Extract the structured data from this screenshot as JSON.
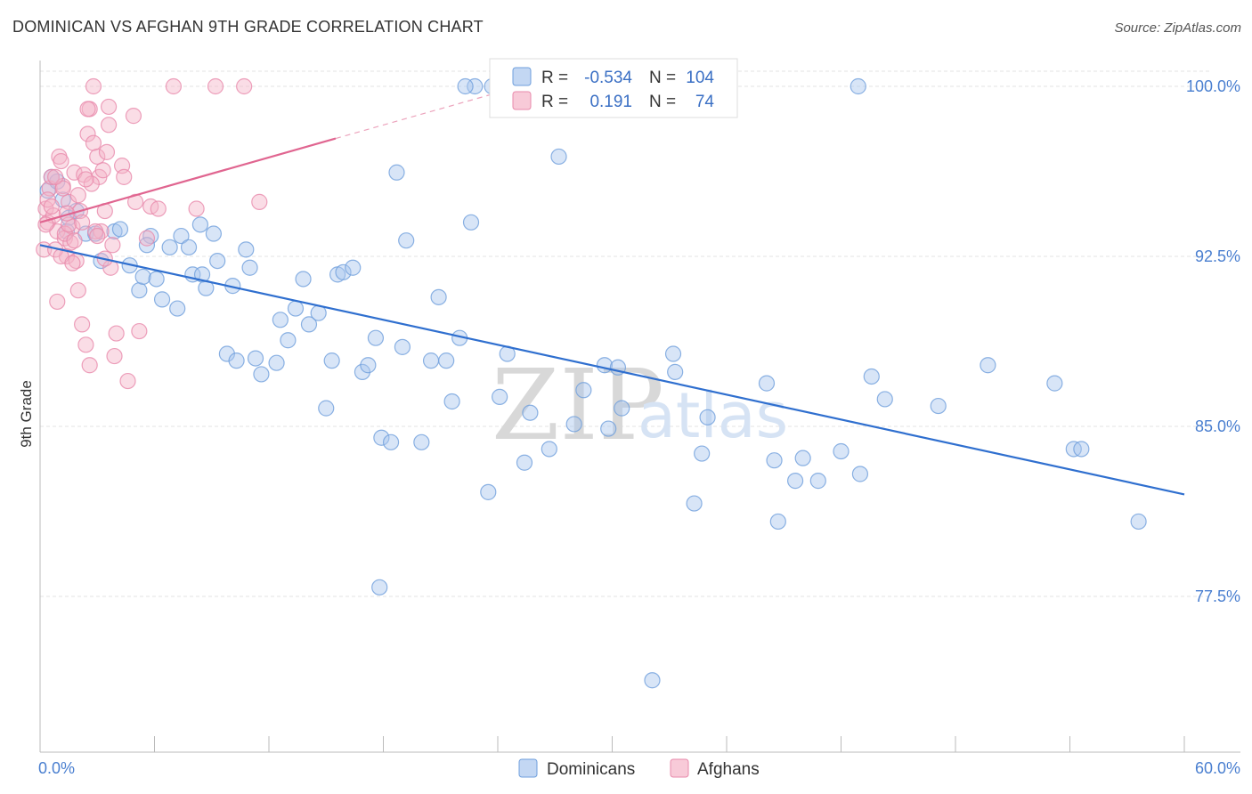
{
  "header": {
    "title": "DOMINICAN VS AFGHAN 9TH GRADE CORRELATION CHART",
    "source": "Source: ZipAtlas.com"
  },
  "watermark": {
    "zip": "ZIP",
    "atlas": "atlas"
  },
  "legend_box": {
    "rows": [
      {
        "r_label": "R =",
        "r_value": "-0.534",
        "n_label": "N =",
        "n_value": "104",
        "color": "#a9c6ee"
      },
      {
        "r_label": "R =",
        "r_value": "0.191",
        "n_label": "N =",
        "n_value": "74",
        "color": "#f5b3c8"
      }
    ]
  },
  "bottom_legend": [
    {
      "label": "Dominicans",
      "color": "#a9c6ee"
    },
    {
      "label": "Afghans",
      "color": "#f5b3c8"
    }
  ],
  "colors": {
    "dominican_fill": "#a9c6ee",
    "dominican_stroke": "#6f9fdc",
    "dominican_line": "#2f6fcf",
    "afghan_fill": "#f5b3c8",
    "afghan_stroke": "#e88aab",
    "afghan_line": "#e06590",
    "grid": "#e3e3e3",
    "tick_label": "#4a7fd0"
  },
  "chart_data": {
    "type": "scatter",
    "title": "DOMINICAN VS AFGHAN 9TH GRADE CORRELATION CHART",
    "xlabel": "",
    "ylabel": "9th Grade",
    "xlim": [
      0,
      60
    ],
    "ylim": [
      72,
      100.7
    ],
    "x_tick_labels": [
      "0.0%",
      "60.0%"
    ],
    "y_ticks": [
      77.5,
      85.0,
      92.5,
      100.0
    ],
    "y_tick_labels": [
      "77.5%",
      "85.0%",
      "92.5%",
      "100.0%"
    ],
    "grid": true,
    "legend": "top-center",
    "series": [
      {
        "name": "Dominicans",
        "r": -0.534,
        "n": 104,
        "trend": {
          "x": [
            0,
            60
          ],
          "y": [
            93.0,
            82.0
          ],
          "dashed_after": null
        },
        "points": [
          [
            0.4,
            95.4
          ],
          [
            0.6,
            96.0
          ],
          [
            0.9,
            95.8
          ],
          [
            1.2,
            95.0
          ],
          [
            1.5,
            94.2
          ],
          [
            1.4,
            93.6
          ],
          [
            1.9,
            94.5
          ],
          [
            2.4,
            93.5
          ],
          [
            2.9,
            93.5
          ],
          [
            3.2,
            92.3
          ],
          [
            3.9,
            93.6
          ],
          [
            4.2,
            93.7
          ],
          [
            4.7,
            92.1
          ],
          [
            5.2,
            91.0
          ],
          [
            5.4,
            91.6
          ],
          [
            5.8,
            93.4
          ],
          [
            6.1,
            91.5
          ],
          [
            6.4,
            90.6
          ],
          [
            6.8,
            92.9
          ],
          [
            7.2,
            90.2
          ],
          [
            7.4,
            93.4
          ],
          [
            7.8,
            92.9
          ],
          [
            8.0,
            91.7
          ],
          [
            8.4,
            93.9
          ],
          [
            8.7,
            91.1
          ],
          [
            9.1,
            93.5
          ],
          [
            9.3,
            92.3
          ],
          [
            9.8,
            88.2
          ],
          [
            10.1,
            91.2
          ],
          [
            10.3,
            87.9
          ],
          [
            10.8,
            92.8
          ],
          [
            11.0,
            92.0
          ],
          [
            11.3,
            88.0
          ],
          [
            11.6,
            87.3
          ],
          [
            12.4,
            87.8
          ],
          [
            12.6,
            89.7
          ],
          [
            13.0,
            88.8
          ],
          [
            13.4,
            90.2
          ],
          [
            13.8,
            91.5
          ],
          [
            14.1,
            89.5
          ],
          [
            14.6,
            90.0
          ],
          [
            15.0,
            85.8
          ],
          [
            15.3,
            87.9
          ],
          [
            15.6,
            91.7
          ],
          [
            15.9,
            91.8
          ],
          [
            16.4,
            92.0
          ],
          [
            16.9,
            87.4
          ],
          [
            17.2,
            87.7
          ],
          [
            17.6,
            88.9
          ],
          [
            17.9,
            84.5
          ],
          [
            18.4,
            84.3
          ],
          [
            18.7,
            96.2
          ],
          [
            19.0,
            88.5
          ],
          [
            19.2,
            93.2
          ],
          [
            20.0,
            84.3
          ],
          [
            20.5,
            87.9
          ],
          [
            20.9,
            90.7
          ],
          [
            21.3,
            87.9
          ],
          [
            21.6,
            86.1
          ],
          [
            22.0,
            88.9
          ],
          [
            22.6,
            94.0
          ],
          [
            22.8,
            100.0
          ],
          [
            23.7,
            100.0
          ],
          [
            23.5,
            82.1
          ],
          [
            24.1,
            86.3
          ],
          [
            24.5,
            88.2
          ],
          [
            25.4,
            83.4
          ],
          [
            25.7,
            85.6
          ],
          [
            26.7,
            84.0
          ],
          [
            27.2,
            96.9
          ],
          [
            28.0,
            85.1
          ],
          [
            28.5,
            86.6
          ],
          [
            29.6,
            87.7
          ],
          [
            29.8,
            84.9
          ],
          [
            30.3,
            87.6
          ],
          [
            30.5,
            85.8
          ],
          [
            32.1,
            73.8
          ],
          [
            32.6,
            100.0
          ],
          [
            33.2,
            88.2
          ],
          [
            33.3,
            87.4
          ],
          [
            34.3,
            81.6
          ],
          [
            34.7,
            83.8
          ],
          [
            35.0,
            85.4
          ],
          [
            38.1,
            86.9
          ],
          [
            38.5,
            83.5
          ],
          [
            38.7,
            80.8
          ],
          [
            39.6,
            82.6
          ],
          [
            40.0,
            83.6
          ],
          [
            40.8,
            82.6
          ],
          [
            42.0,
            83.9
          ],
          [
            42.9,
            100.0
          ],
          [
            43.0,
            82.9
          ],
          [
            43.6,
            87.2
          ],
          [
            44.3,
            86.2
          ],
          [
            47.1,
            85.9
          ],
          [
            49.7,
            87.7
          ],
          [
            53.2,
            86.9
          ],
          [
            54.2,
            84.0
          ],
          [
            54.6,
            84.0
          ],
          [
            57.6,
            80.8
          ],
          [
            17.8,
            77.9
          ],
          [
            22.3,
            100.0
          ],
          [
            5.6,
            93.0
          ],
          [
            8.5,
            91.7
          ]
        ]
      },
      {
        "name": "Afghans",
        "r": 0.191,
        "n": 74,
        "trend": {
          "x": [
            0,
            15.5,
            26
          ],
          "y": [
            94.0,
            97.7,
            100.2
          ],
          "dashed_after": 15.5
        },
        "points": [
          [
            0.3,
            94.6
          ],
          [
            0.4,
            94.0
          ],
          [
            0.2,
            92.8
          ],
          [
            0.5,
            95.5
          ],
          [
            0.6,
            96.0
          ],
          [
            0.7,
            94.3
          ],
          [
            0.9,
            93.6
          ],
          [
            1.0,
            96.9
          ],
          [
            1.1,
            96.7
          ],
          [
            1.2,
            95.6
          ],
          [
            1.3,
            93.3
          ],
          [
            1.4,
            92.5
          ],
          [
            1.5,
            94.9
          ],
          [
            1.7,
            93.8
          ],
          [
            1.8,
            96.2
          ],
          [
            1.9,
            92.3
          ],
          [
            2.0,
            91.0
          ],
          [
            2.2,
            89.5
          ],
          [
            2.4,
            88.6
          ],
          [
            2.5,
            97.9
          ],
          [
            2.6,
            99.0
          ],
          [
            2.8,
            97.5
          ],
          [
            3.0,
            96.9
          ],
          [
            3.1,
            96.0
          ],
          [
            3.2,
            93.6
          ],
          [
            3.4,
            94.5
          ],
          [
            3.5,
            97.1
          ],
          [
            3.6,
            98.3
          ],
          [
            3.7,
            92.0
          ],
          [
            3.9,
            88.1
          ],
          [
            4.0,
            89.1
          ],
          [
            4.3,
            96.5
          ],
          [
            4.4,
            96.0
          ],
          [
            4.6,
            87.0
          ],
          [
            4.9,
            98.7
          ],
          [
            5.0,
            94.9
          ],
          [
            5.2,
            89.2
          ],
          [
            5.6,
            93.3
          ],
          [
            5.8,
            94.7
          ],
          [
            6.2,
            94.6
          ],
          [
            7.0,
            100.0
          ],
          [
            8.2,
            94.6
          ],
          [
            9.2,
            100.0
          ],
          [
            10.7,
            100.0
          ],
          [
            11.5,
            94.9
          ],
          [
            2.8,
            100.0
          ],
          [
            2.5,
            99.0
          ],
          [
            3.6,
            99.1
          ],
          [
            0.8,
            92.8
          ],
          [
            1.6,
            93.1
          ],
          [
            2.1,
            94.5
          ],
          [
            2.9,
            93.6
          ],
          [
            3.3,
            96.3
          ],
          [
            0.4,
            95.0
          ],
          [
            0.9,
            90.5
          ],
          [
            1.3,
            93.5
          ],
          [
            1.8,
            93.2
          ],
          [
            2.3,
            96.1
          ],
          [
            2.7,
            95.7
          ],
          [
            3.8,
            93.0
          ],
          [
            1.1,
            92.5
          ],
          [
            0.6,
            94.7
          ],
          [
            1.5,
            93.9
          ],
          [
            2.0,
            95.2
          ],
          [
            2.6,
            87.7
          ],
          [
            0.3,
            93.9
          ],
          [
            1.2,
            95.5
          ],
          [
            1.7,
            92.2
          ],
          [
            2.2,
            94.0
          ],
          [
            3.0,
            93.4
          ],
          [
            0.8,
            96.0
          ],
          [
            1.4,
            94.4
          ],
          [
            2.4,
            95.9
          ],
          [
            3.4,
            92.4
          ]
        ]
      }
    ]
  }
}
